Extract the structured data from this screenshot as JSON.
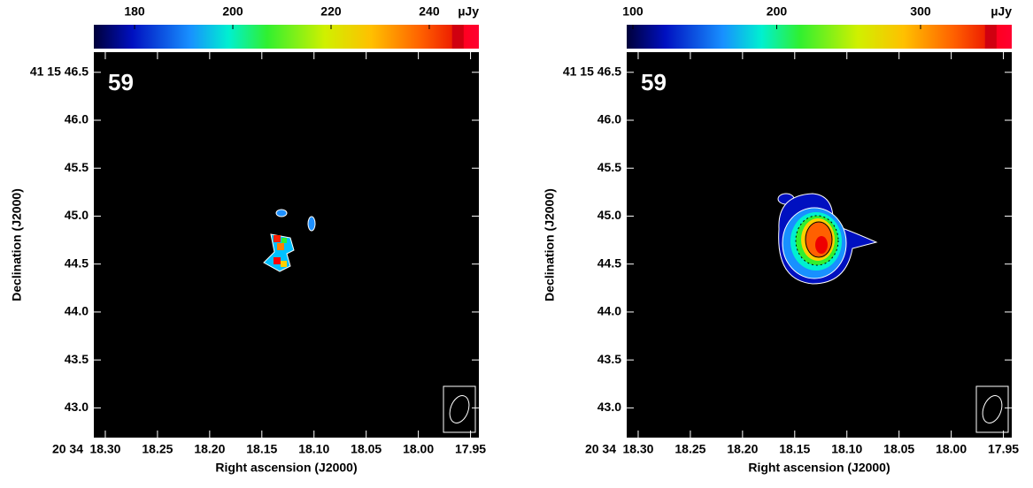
{
  "chart_data": [
    {
      "type": "image",
      "label": "59",
      "xlabel": "Right ascension (J2000)",
      "ylabel": "Declination (J2000)",
      "xprefix": "20 34",
      "xlim": [
        18.311,
        17.942
      ],
      "ylim": [
        42.69,
        46.71
      ],
      "xticks": [
        {
          "value": 18.3,
          "label": "18.30"
        },
        {
          "value": 18.25,
          "label": "18.25"
        },
        {
          "value": 18.2,
          "label": "18.20"
        },
        {
          "value": 18.15,
          "label": "18.15"
        },
        {
          "value": 18.1,
          "label": "18.10"
        },
        {
          "value": 18.05,
          "label": "18.05"
        },
        {
          "value": 18.0,
          "label": "18.00"
        },
        {
          "value": 17.95,
          "label": "17.95"
        }
      ],
      "yticks": [
        {
          "value": 46.5,
          "label": "41 15 46.5"
        },
        {
          "value": 46.0,
          "label": "46.0"
        },
        {
          "value": 45.5,
          "label": "45.5"
        },
        {
          "value": 45.0,
          "label": "45.0"
        },
        {
          "value": 44.5,
          "label": "44.5"
        },
        {
          "value": 44.0,
          "label": "44.0"
        },
        {
          "value": 43.5,
          "label": "43.5"
        },
        {
          "value": 43.0,
          "label": "43.0"
        }
      ],
      "colorbar": {
        "lim": [
          171.7,
          250.1
        ],
        "ticks": [
          180,
          200,
          220,
          240
        ],
        "unit": "µJy"
      }
    },
    {
      "type": "image",
      "label": "59",
      "xlabel": "Right ascension (J2000)",
      "ylabel": "Declination (J2000)",
      "xprefix": "20 34",
      "xlim": [
        18.311,
        17.942
      ],
      "ylim": [
        42.69,
        46.71
      ],
      "xticks": [
        {
          "value": 18.3,
          "label": "18.30"
        },
        {
          "value": 18.25,
          "label": "18.25"
        },
        {
          "value": 18.2,
          "label": "18.20"
        },
        {
          "value": 18.15,
          "label": "18.15"
        },
        {
          "value": 18.1,
          "label": "18.10"
        },
        {
          "value": 18.05,
          "label": "18.05"
        },
        {
          "value": 18.0,
          "label": "18.00"
        },
        {
          "value": 17.95,
          "label": "17.95"
        }
      ],
      "yticks": [
        {
          "value": 46.5,
          "label": "41 15 46.5"
        },
        {
          "value": 46.0,
          "label": "46.0"
        },
        {
          "value": 45.5,
          "label": "45.5"
        },
        {
          "value": 45.0,
          "label": "45.0"
        },
        {
          "value": 44.5,
          "label": "44.5"
        },
        {
          "value": 44.0,
          "label": "44.0"
        },
        {
          "value": 43.5,
          "label": "43.5"
        },
        {
          "value": 43.0,
          "label": "43.0"
        }
      ],
      "colorbar": {
        "lim": [
          95.7,
          363.4
        ],
        "ticks": [
          100,
          200,
          300
        ],
        "unit": "µJy"
      }
    }
  ]
}
